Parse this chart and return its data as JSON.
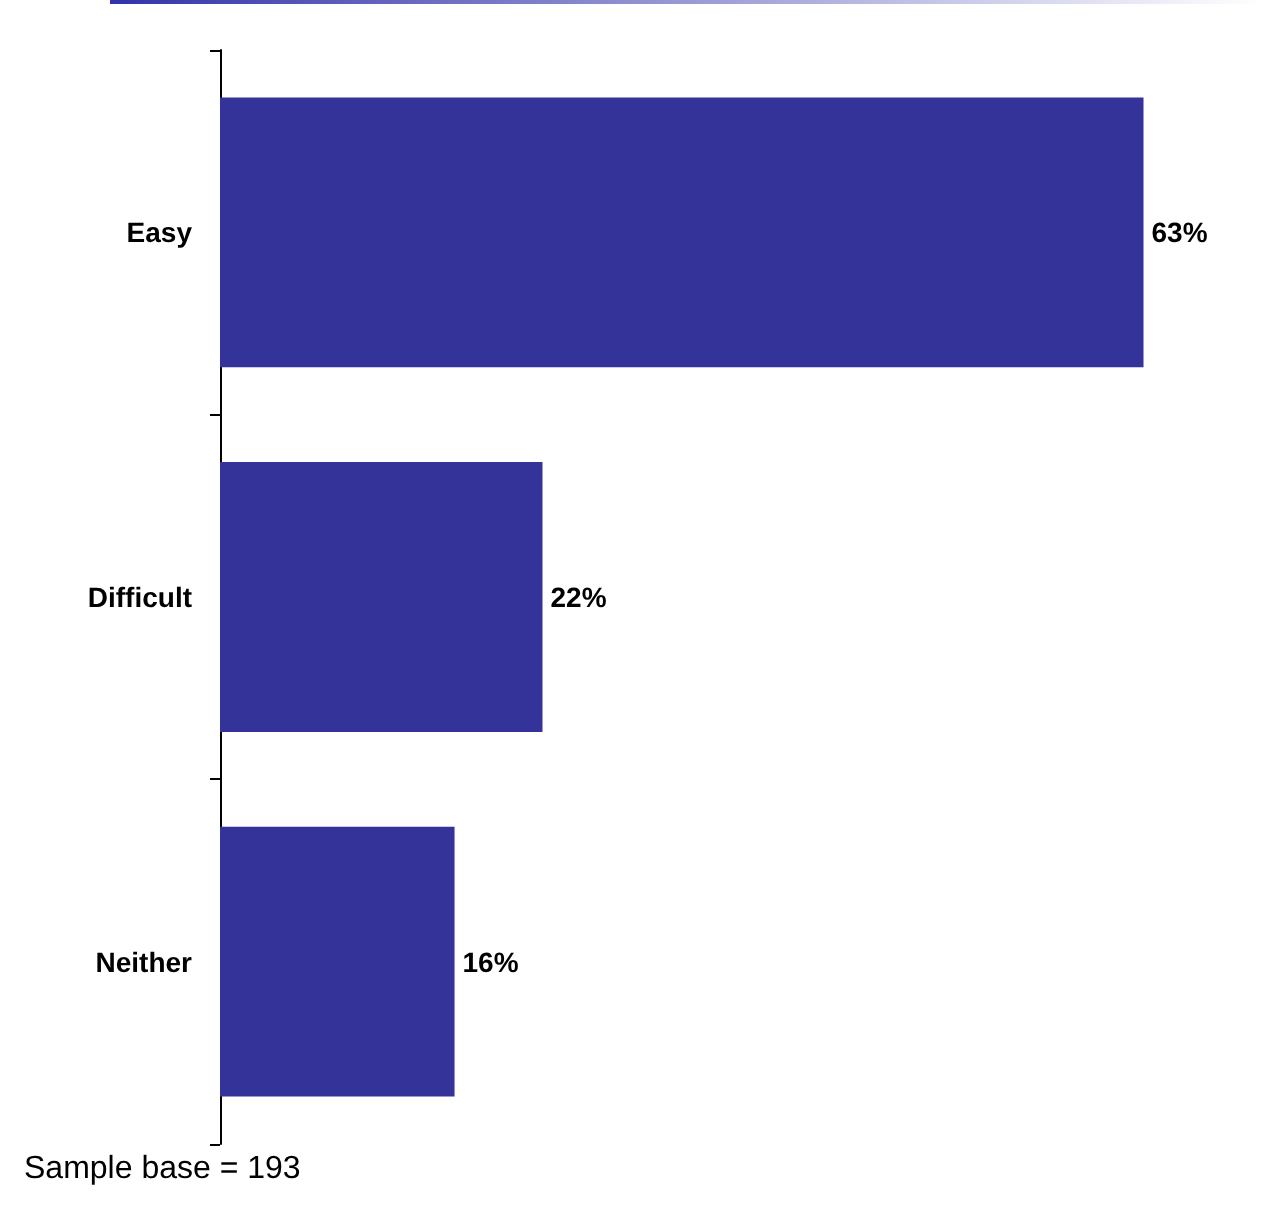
{
  "chart_data": {
    "type": "bar",
    "orientation": "horizontal",
    "categories": [
      "Easy",
      "Difficult",
      "Neither"
    ],
    "values": [
      63,
      22,
      16
    ],
    "value_labels": [
      "63%",
      "22%",
      "16%"
    ],
    "color": "#333399",
    "annotations": [
      "Sample base = 193"
    ]
  }
}
